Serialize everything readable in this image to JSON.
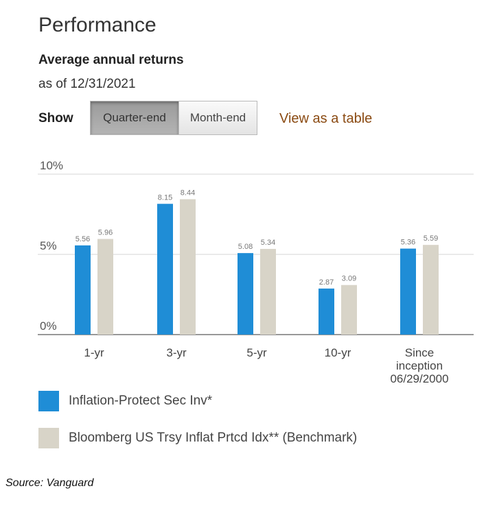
{
  "header": {
    "title": "Performance",
    "subtitle": "Average annual returns",
    "as_of": "as of 12/31/2021"
  },
  "controls": {
    "show_label": "Show",
    "quarter_end": "Quarter-end",
    "month_end": "Month-end",
    "active": "quarter_end",
    "view_table": "View as a table"
  },
  "chart_data": {
    "type": "bar",
    "categories": [
      "1-yr",
      "3-yr",
      "5-yr",
      "10-yr",
      "Since inception 06/29/2000"
    ],
    "category_lines": [
      [
        "1-yr"
      ],
      [
        "3-yr"
      ],
      [
        "5-yr"
      ],
      [
        "10-yr"
      ],
      [
        "Since",
        "inception",
        "06/29/2000"
      ]
    ],
    "series": [
      {
        "name": "Inflation-Protect Sec Inv*",
        "color": "#1f8dd6",
        "values": [
          5.56,
          8.15,
          5.08,
          2.87,
          5.36
        ]
      },
      {
        "name": "Bloomberg US Trsy Inflat Prtcd Idx** (Benchmark)",
        "color": "#d8d4c8",
        "values": [
          5.96,
          8.44,
          5.34,
          3.09,
          5.59
        ]
      }
    ],
    "value_labels": [
      [
        "5.56",
        "8.15",
        "5.08",
        "2.87",
        "5.36"
      ],
      [
        "5.96",
        "8.44",
        "5.34",
        "3.09",
        "5.59"
      ]
    ],
    "ylim": [
      0,
      10
    ],
    "yticks": [
      0,
      5,
      10
    ],
    "ytick_labels": [
      "0%",
      "5%",
      "10%"
    ],
    "grid": true,
    "legend_position": "bottom"
  },
  "footer": {
    "source": "Source: Vanguard"
  }
}
